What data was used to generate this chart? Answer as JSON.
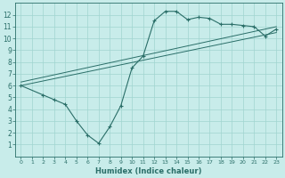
{
  "title": "",
  "xlabel": "Humidex (Indice chaleur)",
  "ylabel": "",
  "bg_color": "#c8ecea",
  "grid_color": "#a0d4d0",
  "line_color": "#2a6e68",
  "xlim": [
    -0.5,
    23.5
  ],
  "ylim": [
    0,
    13
  ],
  "xticks": [
    0,
    1,
    2,
    3,
    4,
    5,
    6,
    7,
    8,
    9,
    10,
    11,
    12,
    13,
    14,
    15,
    16,
    17,
    18,
    19,
    20,
    21,
    22,
    23
  ],
  "yticks": [
    1,
    2,
    3,
    4,
    5,
    6,
    7,
    8,
    9,
    10,
    11,
    12
  ],
  "line1_x": [
    0,
    2,
    3,
    4,
    5,
    6,
    7,
    8,
    9,
    10,
    11,
    12,
    13,
    14,
    15,
    16,
    17,
    18,
    19,
    20,
    21,
    22,
    23
  ],
  "line1_y": [
    6.0,
    5.2,
    4.8,
    4.4,
    3.0,
    1.8,
    1.1,
    2.5,
    4.3,
    7.5,
    8.5,
    11.5,
    12.3,
    12.3,
    11.6,
    11.8,
    11.7,
    11.2,
    11.2,
    11.1,
    11.0,
    10.2,
    10.8
  ],
  "line2_x": [
    0,
    23
  ],
  "line2_y": [
    6.3,
    11.0
  ],
  "line3_x": [
    0,
    23
  ],
  "line3_y": [
    6.0,
    10.5
  ],
  "figsize": [
    3.2,
    2.0
  ],
  "dpi": 100
}
